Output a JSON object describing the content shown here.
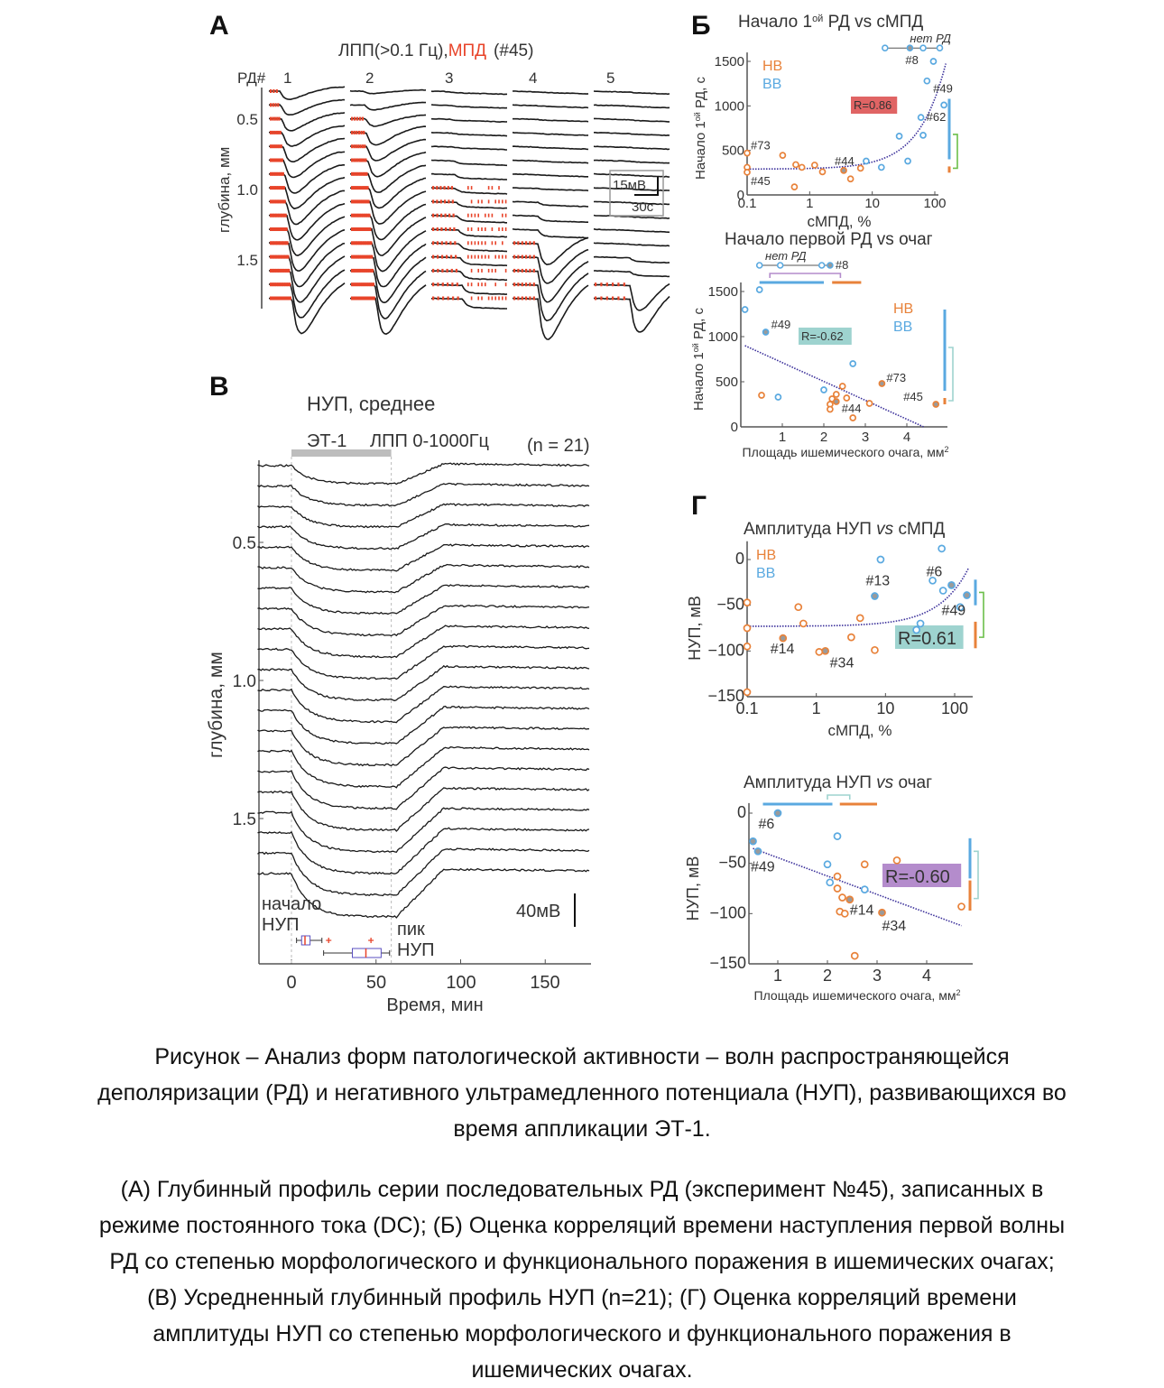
{
  "figure": {
    "panel_a": {
      "letter": "А",
      "title_black": "ЛПП(>0.1 Гц),",
      "title_red": "МПД",
      "title_tail": "(#45)",
      "rd_label": "РД#",
      "rd_numbers": [
        "1",
        "2",
        "3",
        "4",
        "5"
      ],
      "ylabel": "глубина, мм",
      "yticks": [
        "0.5",
        "1.0",
        "1.5"
      ],
      "scale_mv": "15мВ",
      "scale_s": "30с",
      "colors": {
        "trace": "#1a1a1a",
        "mpd": "#e8442a"
      }
    },
    "panel_b_letter": "Б",
    "panel_v": {
      "letter": "В",
      "title": "НУП, среднее",
      "et1": "ЭТ-1",
      "lfp": "ЛПП 0-1000Гц",
      "n": "(n = 21)",
      "ylabel": "глубина, мм",
      "yticks": [
        "0.5",
        "1.0",
        "1.5"
      ],
      "xlabel": "Время, мин",
      "xticks": [
        "0",
        "50",
        "100",
        "150"
      ],
      "scale": "40мВ",
      "onset_label": [
        "начало",
        "НУП"
      ],
      "peak_label": [
        "пик",
        "НУП"
      ],
      "et1_interval_min": [
        0,
        59
      ],
      "onset_box_min": {
        "whisker": [
          3,
          18
        ],
        "box": [
          6,
          11
        ],
        "median": 8,
        "outliers": [
          22
        ]
      },
      "peak_box_min": {
        "whisker": [
          19,
          58
        ],
        "box": [
          36,
          53
        ],
        "median": 44,
        "outliers": [
          47
        ]
      }
    },
    "panel_g_letter": "Г"
  },
  "chart_data": [
    {
      "type": "scatter",
      "title_parts": [
        "Начало 1",
        "ой",
        " РД vs сМПД"
      ],
      "xlabel": "сМПД, %",
      "ylabel_parts": [
        "Начало 1",
        "ой",
        " РД, с"
      ],
      "xscale": "log",
      "xlim": [
        0.1,
        150
      ],
      "ylim": [
        0,
        1600
      ],
      "xticks": [
        "0.1",
        "1",
        "10",
        "100"
      ],
      "yticks": [
        "0",
        "500",
        "1000",
        "1500"
      ],
      "legend": [
        "НВ",
        "ВВ"
      ],
      "colors": {
        "НВ": "#e8823a",
        "ВВ": "#5aa9e0",
        "fit": "#3a2f9a",
        "r_box": "#e06464"
      },
      "r_label": "R=0.86",
      "fit": {
        "kind": "linear",
        "intercept": 290,
        "slope": 7.9
      },
      "no_rd": {
        "label": "нет РД",
        "y": 1650,
        "x": [
          16,
          40,
          65,
          120
        ],
        "highlight": [
          40
        ]
      },
      "series": [
        {
          "name": "НВ",
          "points": [
            {
              "x": 0.1,
              "y": 470,
              "label": "#73"
            },
            {
              "x": 0.1,
              "y": 310
            },
            {
              "x": 0.1,
              "y": 255,
              "label": "#45"
            },
            {
              "x": 0.37,
              "y": 445
            },
            {
              "x": 0.6,
              "y": 340
            },
            {
              "x": 0.57,
              "y": 90
            },
            {
              "x": 0.75,
              "y": 310
            },
            {
              "x": 1.2,
              "y": 335
            },
            {
              "x": 1.6,
              "y": 260
            },
            {
              "x": 3.5,
              "y": 275,
              "label": "#44",
              "highlight": true
            },
            {
              "x": 4.5,
              "y": 180
            },
            {
              "x": 6.5,
              "y": 300
            }
          ]
        },
        {
          "name": "ВВ",
          "points": [
            {
              "x": 95,
              "y": 1500
            },
            {
              "x": 75,
              "y": 1280
            },
            {
              "x": 140,
              "y": 1010,
              "label": "#49"
            },
            {
              "x": 60,
              "y": 870,
              "label": "#62"
            },
            {
              "x": 65,
              "y": 670
            },
            {
              "x": 27,
              "y": 660
            },
            {
              "x": 8,
              "y": 380
            },
            {
              "x": 14,
              "y": 310
            },
            {
              "x": 37,
              "y": 380
            }
          ]
        }
      ],
      "no_rd_label": "#8",
      "range_bars": [
        {
          "axis": "y",
          "color": "ВВ",
          "range": [
            400,
            1080
          ]
        },
        {
          "axis": "y",
          "color": "НВ",
          "range": [
            250,
            320
          ]
        },
        {
          "axis": "y",
          "bracket": true,
          "color_hex": "#6cbf4a",
          "range": [
            300,
            680
          ]
        }
      ]
    },
    {
      "type": "scatter",
      "title_parts": [
        "Начало первой РД vs очаг"
      ],
      "xlabel_parts": [
        "Площадь ишемического очага, мм",
        "2"
      ],
      "ylabel_parts": [
        "Начало 1",
        "ой",
        " РД, с"
      ],
      "xscale": "linear",
      "xlim": [
        0,
        4.9
      ],
      "ylim": [
        0,
        1600
      ],
      "xticks": [
        "1",
        "2",
        "3",
        "4"
      ],
      "yticks": [
        "0",
        "500",
        "1000",
        "1500"
      ],
      "legend": [
        "НВ",
        "ВВ"
      ],
      "colors": {
        "НВ": "#e8823a",
        "ВВ": "#5aa9e0",
        "fit": "#3a2f9a",
        "r_box": "#9ed3cf"
      },
      "r_label": "R=-0.62",
      "fit": {
        "kind": "linear",
        "intercept": 921,
        "slope": -209
      },
      "no_rd": {
        "label": "нет РД",
        "y": 1790,
        "x": [
          0.45,
          0.95,
          1.95,
          2.15
        ],
        "highlight": [
          2.15
        ]
      },
      "no_rd_label": "#8",
      "series": [
        {
          "name": "НВ",
          "points": [
            {
              "x": 0.5,
              "y": 350
            },
            {
              "x": 2.45,
              "y": 450
            },
            {
              "x": 2.3,
              "y": 360
            },
            {
              "x": 2.2,
              "y": 310
            },
            {
              "x": 2.15,
              "y": 250
            },
            {
              "x": 2.15,
              "y": 195
            },
            {
              "x": 2.3,
              "y": 280,
              "label": "#44",
              "highlight": true
            },
            {
              "x": 2.55,
              "y": 320
            },
            {
              "x": 2.7,
              "y": 100
            },
            {
              "x": 3.1,
              "y": 260
            },
            {
              "x": 3.4,
              "y": 480,
              "label": "#73",
              "highlight": true
            },
            {
              "x": 4.7,
              "y": 250,
              "label": "#45",
              "highlight": true
            }
          ]
        },
        {
          "name": "ВВ",
          "points": [
            {
              "x": 0.1,
              "y": 1300
            },
            {
              "x": 0.45,
              "y": 1520
            },
            {
              "x": 0.6,
              "y": 1050,
              "label": "#49",
              "highlight": true
            },
            {
              "x": 0.9,
              "y": 330
            },
            {
              "x": 2.0,
              "y": 410
            },
            {
              "x": 2.7,
              "y": 700
            }
          ]
        }
      ],
      "range_bars": [
        {
          "axis": "y",
          "color": "ВВ",
          "range": [
            400,
            1300
          ]
        },
        {
          "axis": "y",
          "color": "НВ",
          "range": [
            250,
            320
          ]
        },
        {
          "axis": "y",
          "bracket": true,
          "color_hex": "#9ed3cf",
          "range": [
            290,
            880
          ]
        },
        {
          "axis": "x",
          "color": "ВВ",
          "range": [
            0.45,
            2.0
          ]
        },
        {
          "axis": "x",
          "color": "НВ",
          "range": [
            2.2,
            2.9
          ]
        },
        {
          "axis": "x",
          "bracket": true,
          "color_hex": "#b48ccc",
          "range": [
            0.7,
            2.4
          ]
        }
      ]
    },
    {
      "type": "scatter",
      "title_parts": [
        "Амплитуда НУП ",
        "vs",
        " сМПД"
      ],
      "xlabel": "сМПД, %",
      "ylabel": "НУП, мВ",
      "xscale": "log",
      "xlim": [
        0.1,
        160
      ],
      "ylim": [
        -150,
        20
      ],
      "xticks": [
        "0.1",
        "1",
        "10",
        "100"
      ],
      "yticks": [
        "0",
        "−50",
        "−100",
        "−150"
      ],
      "legend": [
        "НВ",
        "ВВ"
      ],
      "colors": {
        "НВ": "#e8823a",
        "ВВ": "#5aa9e0",
        "fit": "#3a2f9a",
        "r_box": "#9ed3cf"
      },
      "r_label": "R=0.61",
      "fit": {
        "kind": "linear",
        "intercept": -73,
        "slope": 0.4
      },
      "series": [
        {
          "name": "НВ",
          "points": [
            {
              "x": 0.1,
              "y": -47
            },
            {
              "x": 0.1,
              "y": -75
            },
            {
              "x": 0.1,
              "y": -95
            },
            {
              "x": 0.1,
              "y": -145
            },
            {
              "x": 0.33,
              "y": -86,
              "label": "#14",
              "highlight": true
            },
            {
              "x": 0.55,
              "y": -52
            },
            {
              "x": 0.65,
              "y": -70
            },
            {
              "x": 1.1,
              "y": -101
            },
            {
              "x": 1.35,
              "y": -100,
              "label": "#34",
              "highlight": true
            },
            {
              "x": 3.2,
              "y": -85
            },
            {
              "x": 4.3,
              "y": -64
            },
            {
              "x": 7,
              "y": -99
            }
          ]
        },
        {
          "name": "ВВ",
          "points": [
            {
              "x": 7,
              "y": -40,
              "label": "#13",
              "highlight": true
            },
            {
              "x": 8.5,
              "y": 0
            },
            {
              "x": 28,
              "y": -77
            },
            {
              "x": 32,
              "y": -70
            },
            {
              "x": 48,
              "y": -23
            },
            {
              "x": 65,
              "y": 12
            },
            {
              "x": 68,
              "y": -34
            },
            {
              "x": 90,
              "y": -28,
              "label": "#6",
              "highlight": true
            },
            {
              "x": 120,
              "y": -52
            },
            {
              "x": 150,
              "y": -39,
              "label": "#49",
              "highlight": true
            }
          ]
        }
      ],
      "range_bars": [
        {
          "axis": "y",
          "color": "ВВ",
          "range": [
            -50,
            -22
          ]
        },
        {
          "axis": "y",
          "color": "НВ",
          "range": [
            -97,
            -68
          ]
        },
        {
          "axis": "y",
          "bracket": true,
          "color_hex": "#6cbf4a",
          "range": [
            -85,
            -36
          ]
        }
      ]
    },
    {
      "type": "scatter",
      "title_parts": [
        "Амплитуда НУП ",
        "vs",
        " очаг"
      ],
      "xlabel_parts": [
        "Площадь ишемического очага, мм",
        "2"
      ],
      "ylabel": "НУП, мВ",
      "xscale": "linear",
      "xlim": [
        0.4,
        4.9
      ],
      "ylim": [
        -150,
        10
      ],
      "xticks": [
        "1",
        "2",
        "3",
        "4"
      ],
      "yticks": [
        "0",
        "−50",
        "−100",
        "−150"
      ],
      "colors": {
        "НВ": "#e8823a",
        "ВВ": "#5aa9e0",
        "fit": "#3a2f9a",
        "r_box": "#b48ccc"
      },
      "r_label": "R=-0.60",
      "fit": {
        "kind": "linear",
        "intercept": -26,
        "slope": -18.3
      },
      "series": [
        {
          "name": "НВ",
          "points": [
            {
              "x": 2.2,
              "y": -63
            },
            {
              "x": 2.2,
              "y": -75
            },
            {
              "x": 2.3,
              "y": -84
            },
            {
              "x": 2.25,
              "y": -98
            },
            {
              "x": 2.35,
              "y": -100
            },
            {
              "x": 2.45,
              "y": -86,
              "label": "#14",
              "highlight": true
            },
            {
              "x": 2.75,
              "y": -51
            },
            {
              "x": 3.4,
              "y": -47
            },
            {
              "x": 3.1,
              "y": -99,
              "label": "#34",
              "highlight": true
            },
            {
              "x": 2.55,
              "y": -142
            },
            {
              "x": 4.7,
              "y": -93
            }
          ]
        },
        {
          "name": "ВВ",
          "points": [
            {
              "x": 0.5,
              "y": -28,
              "label": "#6",
              "highlight": true
            },
            {
              "x": 0.6,
              "y": -38,
              "label": "#49",
              "highlight": true
            },
            {
              "x": 1.0,
              "y": 0,
              "highlight": true
            },
            {
              "x": 2.2,
              "y": -23
            },
            {
              "x": 2.0,
              "y": -51
            },
            {
              "x": 2.05,
              "y": -69
            },
            {
              "x": 2.75,
              "y": -76
            }
          ]
        }
      ],
      "range_bars": [
        {
          "axis": "y",
          "color": "ВВ",
          "range": [
            -65,
            -25
          ]
        },
        {
          "axis": "y",
          "color": "НВ",
          "range": [
            -97,
            -67
          ]
        },
        {
          "axis": "y",
          "bracket": true,
          "color_hex": "#9ed3cf",
          "range": [
            -85,
            -38
          ]
        },
        {
          "axis": "x",
          "color": "ВВ",
          "range": [
            0.7,
            2.1
          ]
        },
        {
          "axis": "x",
          "color": "НВ",
          "range": [
            2.25,
            3.0
          ]
        },
        {
          "axis": "x",
          "bracket": true,
          "color_hex": "#9ed3cf",
          "range": [
            2.0,
            2.45
          ]
        }
      ]
    }
  ],
  "caption": {
    "title_lines": [
      "Рисунок  – Анализ форм патологической активности – волн распространяющейся",
      "деполяризации (РД) и негативного ультрамедленного потенциала (НУП), развивающихся во",
      "время аппликации ЭТ-1."
    ],
    "body_lines": [
      "(А) Глубинный профиль серии последовательных РД (эксперимент №45), записанных в",
      "режиме постоянного тока (DC); (Б) Оценка корреляций времени наступления первой волны",
      "РД со степенью морфологического и функционального поражения в ишемических очагах;",
      "(В) Усредненный глубинный профиль НУП (n=21); (Г) Оценка корреляций времени",
      "амплитуды НУП со степенью морфологического и функционального поражения в",
      "ишемических очагах."
    ]
  }
}
